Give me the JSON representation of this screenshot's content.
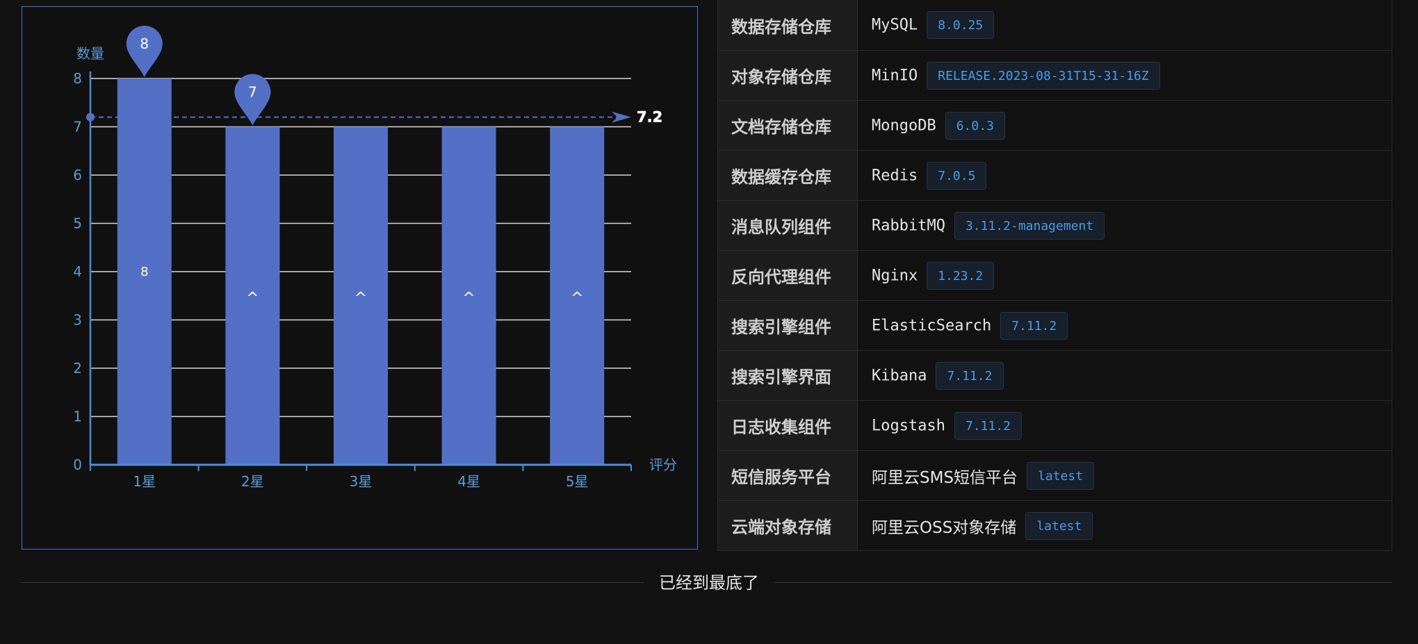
{
  "chart_data": {
    "type": "bar",
    "categories": [
      "1星",
      "2星",
      "3星",
      "4星",
      "5星"
    ],
    "values": [
      8,
      7,
      7,
      7,
      7
    ],
    "bar_labels": [
      "8",
      "^",
      "^",
      "^",
      "^"
    ],
    "markers": [
      {
        "label": "8",
        "category": "1星",
        "value": 8
      },
      {
        "label": "7",
        "category": "2星",
        "value": 7
      }
    ],
    "mark_line": {
      "value": 7.2,
      "label": "7.2"
    },
    "ylabel": "数量",
    "xlabel": "评分",
    "ylim": [
      0,
      8
    ],
    "yticks": [
      0,
      1,
      2,
      3,
      4,
      5,
      6,
      7,
      8
    ],
    "grid": true,
    "colors": {
      "bar": "#5470c6",
      "axis": "#4c8fd6",
      "label": "#5b9bd5",
      "grid": "#d9d9d9",
      "frame": "#4a6fd1"
    }
  },
  "components": [
    {
      "key": "数据存储仓库",
      "name": "MySQL",
      "version": "8.0.25"
    },
    {
      "key": "对象存储仓库",
      "name": "MinIO",
      "version": "RELEASE.2023-08-31T15-31-16Z"
    },
    {
      "key": "文档存储仓库",
      "name": "MongoDB",
      "version": "6.0.3"
    },
    {
      "key": "数据缓存仓库",
      "name": "Redis",
      "version": "7.0.5"
    },
    {
      "key": "消息队列组件",
      "name": "RabbitMQ",
      "version": "3.11.2-management"
    },
    {
      "key": "反向代理组件",
      "name": "Nginx",
      "version": "1.23.2"
    },
    {
      "key": "搜索引擎组件",
      "name": "ElasticSearch",
      "version": "7.11.2"
    },
    {
      "key": "搜索引擎界面",
      "name": "Kibana",
      "version": "7.11.2"
    },
    {
      "key": "日志收集组件",
      "name": "Logstash",
      "version": "7.11.2"
    },
    {
      "key": "短信服务平台",
      "name": "阿里云SMS短信平台",
      "version": "latest"
    },
    {
      "key": "云端对象存储",
      "name": "阿里云OSS对象存储",
      "version": "latest"
    }
  ],
  "footer": {
    "end_text": "已经到最底了"
  }
}
